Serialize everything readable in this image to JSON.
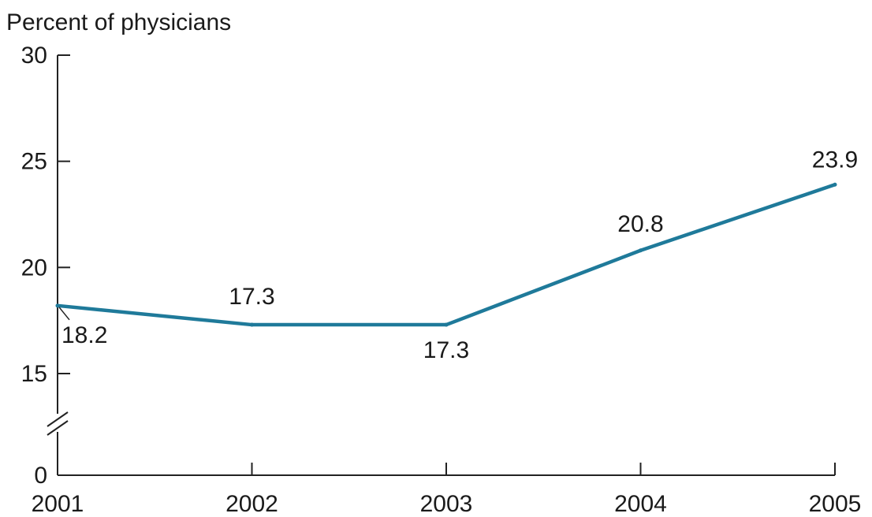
{
  "chart_data": {
    "type": "line",
    "ylabel": "Percent of physicians",
    "x": [
      "2001",
      "2002",
      "2003",
      "2004",
      "2005"
    ],
    "series": [
      {
        "values": [
          18.2,
          17.3,
          17.3,
          20.8,
          23.9
        ]
      }
    ],
    "data_labels": [
      "18.2",
      "17.3",
      "17.3",
      "20.8",
      "23.9"
    ],
    "y_ticks": [
      0,
      15,
      20,
      25,
      30
    ],
    "y_tick_labels": [
      "0",
      "15",
      "20",
      "25",
      "30"
    ],
    "ylim": [
      0,
      30
    ],
    "y_axis_break": true,
    "grid": false,
    "line_color": "#1f7a9a"
  }
}
